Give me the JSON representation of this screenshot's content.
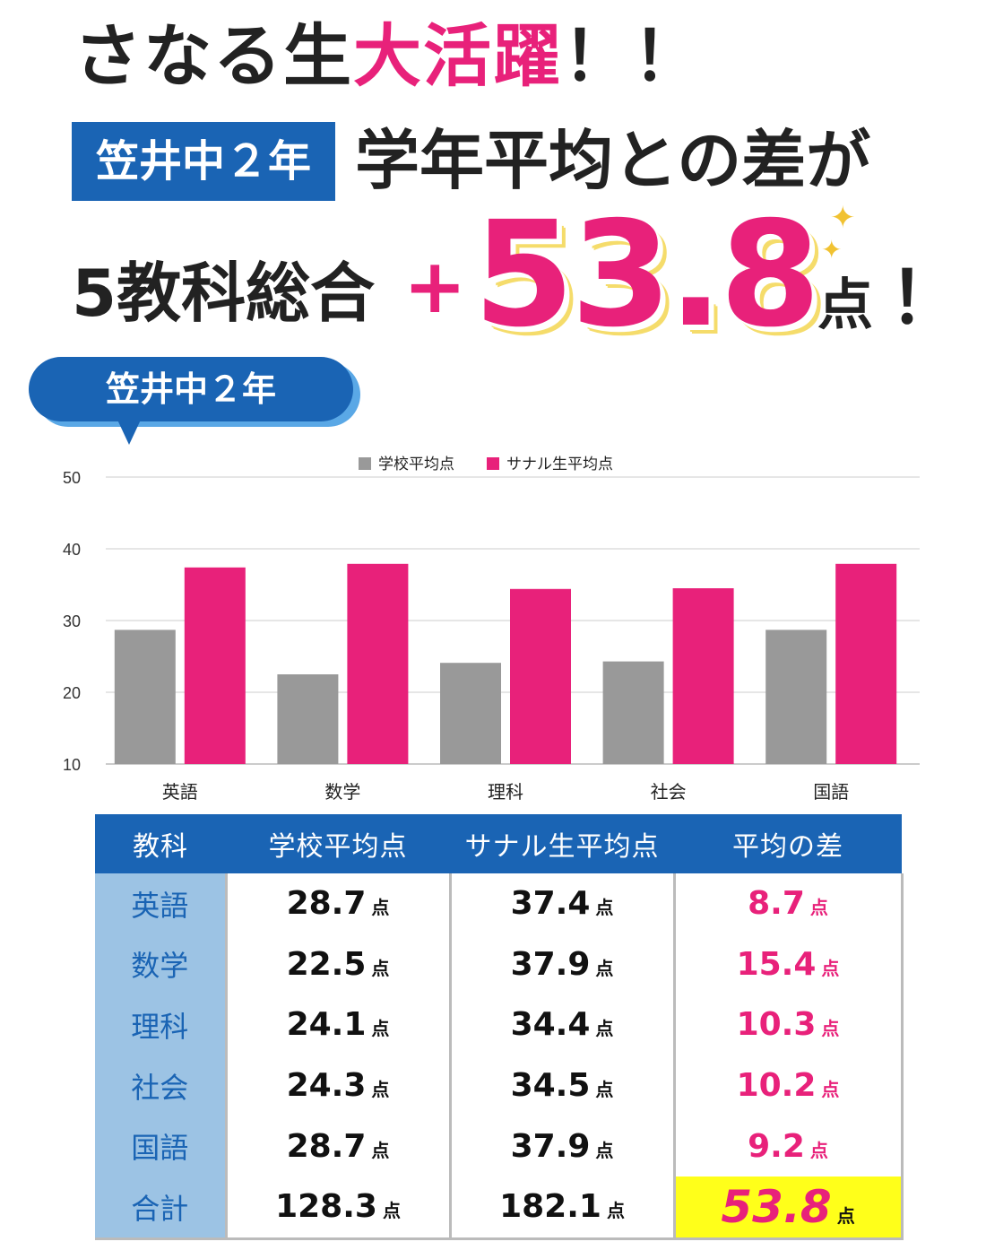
{
  "headline": {
    "line1_black": "さなる生",
    "line1_pink": "大活躍",
    "line1_bang": "！！",
    "school_badge": "笠井中２年",
    "line2": "学年平均との差が",
    "line3": "5教科総合",
    "plus": "+",
    "big_number": "53.8",
    "unit": "点",
    "bang": "！"
  },
  "bubble": {
    "label": "笠井中２年"
  },
  "colors": {
    "brand_blue": "#1a64b4",
    "pink": "#e8217a",
    "gray_bar": "#999999",
    "subject_col": "#9cc3e4",
    "highlight": "#ffff1a"
  },
  "chart_data": {
    "type": "bar",
    "categories": [
      "英語",
      "数学",
      "理科",
      "社会",
      "国語"
    ],
    "series": [
      {
        "name": "学校平均点",
        "values": [
          28.7,
          22.5,
          24.1,
          24.3,
          28.7
        ],
        "color": "#999999"
      },
      {
        "name": "サナル生平均点",
        "values": [
          37.4,
          37.9,
          34.4,
          34.5,
          37.9
        ],
        "color": "#e8217a"
      }
    ],
    "ylim": [
      10,
      50
    ],
    "yticks": [
      "10",
      "20",
      "30",
      "40",
      "50"
    ],
    "grid": true,
    "legend": "top-center"
  },
  "table": {
    "headers": [
      "教科",
      "学校平均点",
      "サナル生平均点",
      "平均の差"
    ],
    "unit": "点",
    "rows": [
      {
        "subject": "英語",
        "school": "28.7",
        "sanaru": "37.4",
        "diff": "8.7"
      },
      {
        "subject": "数学",
        "school": "22.5",
        "sanaru": "37.9",
        "diff": "15.4"
      },
      {
        "subject": "理科",
        "school": "24.1",
        "sanaru": "34.4",
        "diff": "10.3"
      },
      {
        "subject": "社会",
        "school": "24.3",
        "sanaru": "34.5",
        "diff": "10.2"
      },
      {
        "subject": "国語",
        "school": "28.7",
        "sanaru": "37.9",
        "diff": "9.2"
      },
      {
        "subject": "合計",
        "school": "128.3",
        "sanaru": "182.1",
        "diff": "53.8"
      }
    ]
  }
}
